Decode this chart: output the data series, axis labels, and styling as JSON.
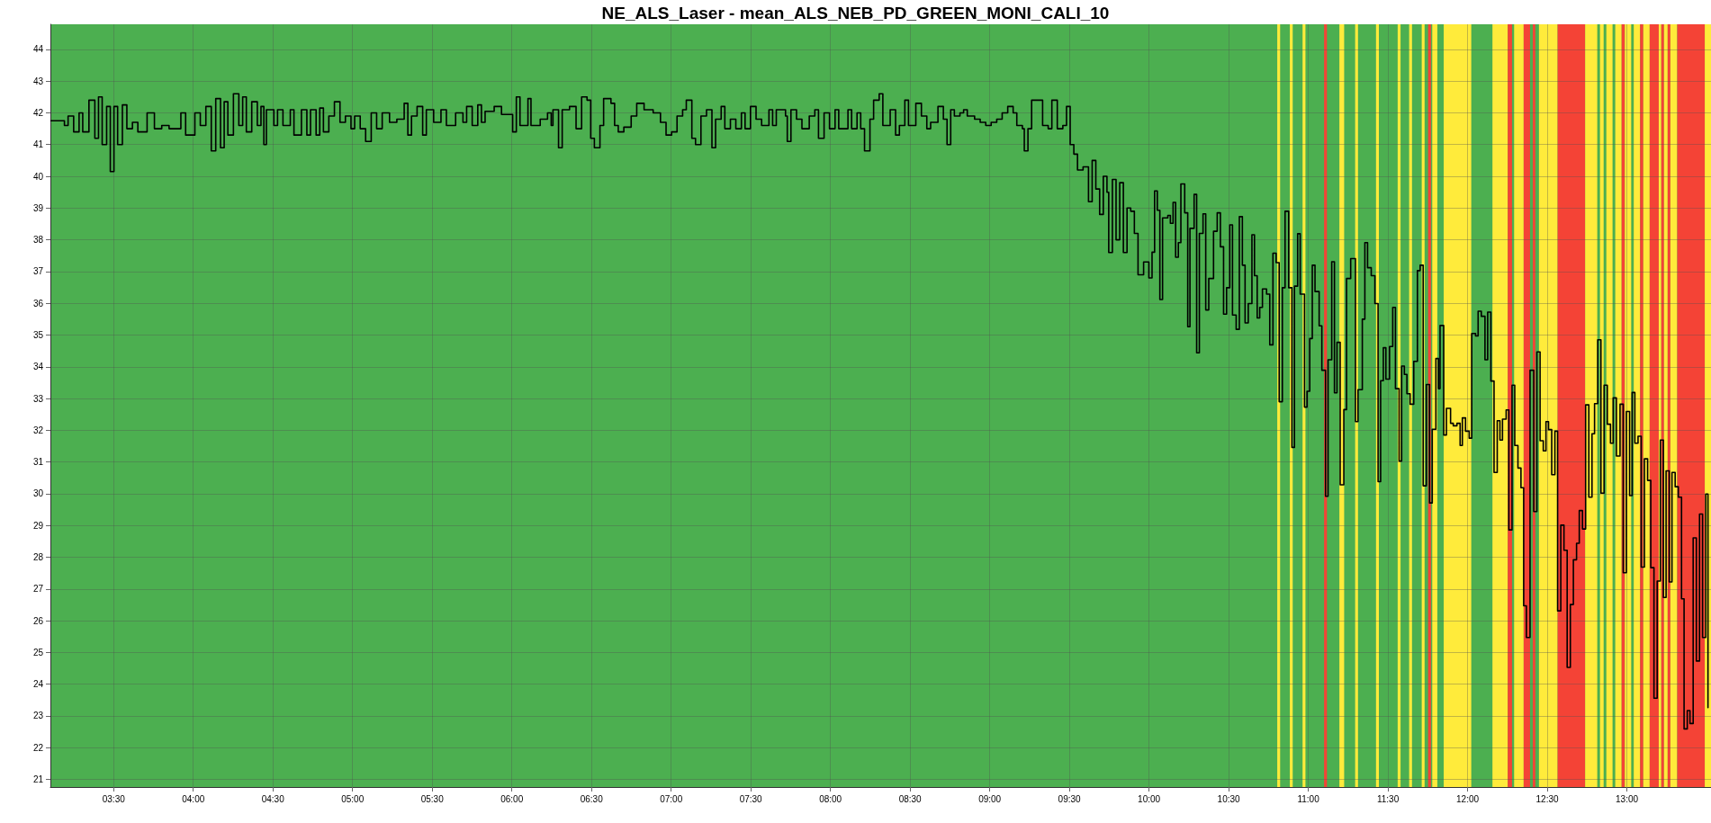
{
  "chart_data": {
    "type": "step",
    "title": "NE_ALS_Laser - mean_ALS_NEB_PD_GREEN_MONI_CALI_10",
    "xlim": [
      3.103,
      13.528
    ],
    "xticks": [
      {
        "value": 3.5,
        "label": "03:30"
      },
      {
        "value": 4,
        "label": "04:00"
      },
      {
        "value": 4.5,
        "label": "04:30"
      },
      {
        "value": 5,
        "label": "05:00"
      },
      {
        "value": 5.5,
        "label": "05:30"
      },
      {
        "value": 6,
        "label": "06:00"
      },
      {
        "value": 6.5,
        "label": "06:30"
      },
      {
        "value": 7,
        "label": "07:00"
      },
      {
        "value": 7.5,
        "label": "07:30"
      },
      {
        "value": 8,
        "label": "08:00"
      },
      {
        "value": 8.5,
        "label": "08:30"
      },
      {
        "value": 9,
        "label": "09:00"
      },
      {
        "value": 9.5,
        "label": "09:30"
      },
      {
        "value": 10,
        "label": "10:00"
      },
      {
        "value": 10.5,
        "label": "10:30"
      },
      {
        "value": 11,
        "label": "11:00"
      },
      {
        "value": 11.5,
        "label": "11:30"
      },
      {
        "value": 12,
        "label": "12:00"
      },
      {
        "value": 12.5,
        "label": "12:30"
      },
      {
        "value": 13,
        "label": "13:00"
      }
    ],
    "ylim": [
      20.76,
      44.79
    ],
    "yticks": [
      21,
      22,
      23,
      24,
      25,
      26,
      27,
      28,
      29,
      30,
      31,
      32,
      33,
      34,
      35,
      36,
      37,
      38,
      39,
      40,
      41,
      42,
      43,
      44
    ],
    "grid": true,
    "line_style": "solid",
    "bands": [
      {
        "axis": "x",
        "from": 3.103,
        "to": 13.528,
        "color": "#4caf50"
      },
      {
        "axis": "x",
        "from": 10.805,
        "to": 10.823,
        "color": "#ffeb3b"
      },
      {
        "axis": "x",
        "from": 10.884,
        "to": 10.902,
        "color": "#ffeb3b"
      },
      {
        "axis": "x",
        "from": 10.964,
        "to": 10.982,
        "color": "#ffeb3b"
      },
      {
        "axis": "x",
        "from": 11.099,
        "to": 11.117,
        "color": "#f44336"
      },
      {
        "axis": "x",
        "from": 11.195,
        "to": 11.225,
        "color": "#ffeb3b"
      },
      {
        "axis": "x",
        "from": 11.294,
        "to": 11.312,
        "color": "#ffeb3b"
      },
      {
        "axis": "x",
        "from": 11.425,
        "to": 11.443,
        "color": "#ffeb3b"
      },
      {
        "axis": "x",
        "from": 11.561,
        "to": 11.579,
        "color": "#ffeb3b"
      },
      {
        "axis": "x",
        "from": 11.633,
        "to": 11.651,
        "color": "#ffeb3b"
      },
      {
        "axis": "x",
        "from": 11.712,
        "to": 11.73,
        "color": "#ffeb3b"
      },
      {
        "axis": "x",
        "from": 11.752,
        "to": 11.77,
        "color": "#f44336"
      },
      {
        "axis": "x",
        "from": 11.778,
        "to": 11.81,
        "color": "#ffeb3b"
      },
      {
        "axis": "x",
        "from": 11.85,
        "to": 12.023,
        "color": "#ffeb3b"
      },
      {
        "axis": "x",
        "from": 12.156,
        "to": 12.252,
        "color": "#ffeb3b"
      },
      {
        "axis": "x",
        "from": 12.252,
        "to": 12.279,
        "color": "#f44336"
      },
      {
        "axis": "x",
        "from": 12.292,
        "to": 12.352,
        "color": "#ffeb3b"
      },
      {
        "axis": "x",
        "from": 12.352,
        "to": 12.392,
        "color": "#f44336"
      },
      {
        "axis": "x",
        "from": 12.409,
        "to": 12.425,
        "color": "#f44336"
      },
      {
        "axis": "x",
        "from": 12.448,
        "to": 12.565,
        "color": "#ffeb3b"
      },
      {
        "axis": "x",
        "from": 12.565,
        "to": 12.738,
        "color": "#f44336"
      },
      {
        "axis": "x",
        "from": 12.738,
        "to": 12.814,
        "color": "#ffeb3b"
      },
      {
        "axis": "x",
        "from": 12.831,
        "to": 12.854,
        "color": "#ffeb3b"
      },
      {
        "axis": "x",
        "from": 12.871,
        "to": 12.91,
        "color": "#ffeb3b"
      },
      {
        "axis": "x",
        "from": 12.927,
        "to": 12.967,
        "color": "#ffeb3b"
      },
      {
        "axis": "x",
        "from": 12.967,
        "to": 12.987,
        "color": "#f44336"
      },
      {
        "axis": "x",
        "from": 12.987,
        "to": 13.027,
        "color": "#ffeb3b"
      },
      {
        "axis": "x",
        "from": 13.043,
        "to": 13.083,
        "color": "#ffeb3b"
      },
      {
        "axis": "x",
        "from": 13.083,
        "to": 13.103,
        "color": "#f44336"
      },
      {
        "axis": "x",
        "from": 13.103,
        "to": 13.143,
        "color": "#ffeb3b"
      },
      {
        "axis": "x",
        "from": 13.143,
        "to": 13.2,
        "color": "#f44336"
      },
      {
        "axis": "x",
        "from": 13.2,
        "to": 13.216,
        "color": "#ffeb3b"
      },
      {
        "axis": "x",
        "from": 13.216,
        "to": 13.233,
        "color": "#f44336"
      },
      {
        "axis": "x",
        "from": 13.233,
        "to": 13.256,
        "color": "#ffeb3b"
      },
      {
        "axis": "x",
        "from": 13.256,
        "to": 13.273,
        "color": "#f44336"
      },
      {
        "axis": "x",
        "from": 13.273,
        "to": 13.316,
        "color": "#ffeb3b"
      },
      {
        "axis": "x",
        "from": 13.316,
        "to": 13.489,
        "color": "#f44336"
      },
      {
        "axis": "x",
        "from": 13.489,
        "to": 13.528,
        "color": "#ffeb3b"
      }
    ],
    "series": [
      {
        "color": "#000000",
        "x": [
          3.106,
          3.191,
          3.214,
          3.249,
          3.283,
          3.306,
          3.345,
          3.382,
          3.405,
          3.428,
          3.456,
          3.479,
          3.502,
          3.525,
          3.555,
          3.583,
          3.618,
          3.652,
          3.71,
          3.756,
          3.802,
          3.848,
          3.922,
          3.952,
          4.01,
          4.044,
          4.079,
          4.113,
          4.141,
          4.171,
          4.194,
          4.217,
          4.252,
          4.286,
          4.31,
          4.333,
          4.367,
          4.402,
          4.425,
          4.443,
          4.459,
          4.506,
          4.529,
          4.563,
          4.609,
          4.632,
          4.679,
          4.713,
          4.736,
          4.771,
          4.794,
          4.817,
          4.851,
          4.886,
          4.921,
          4.955,
          4.99,
          5.013,
          5.048,
          5.082,
          5.117,
          5.151,
          5.186,
          5.232,
          5.278,
          5.324,
          5.347,
          5.37,
          5.405,
          5.44,
          5.463,
          5.509,
          5.555,
          5.589,
          5.647,
          5.693,
          5.716,
          5.751,
          5.786,
          5.809,
          5.832,
          5.889,
          5.935,
          6.005,
          6.028,
          6.051,
          6.101,
          6.12,
          6.178,
          6.224,
          6.247,
          6.258,
          6.293,
          6.316,
          6.362,
          6.403,
          6.438,
          6.472,
          6.495,
          6.518,
          6.553,
          6.576,
          6.622,
          6.645,
          6.668,
          6.703,
          6.749,
          6.784,
          6.83,
          6.887,
          6.933,
          6.968,
          7.003,
          7.037,
          7.072,
          7.095,
          7.13,
          7.153,
          7.187,
          7.222,
          7.256,
          7.279,
          7.314,
          7.337,
          7.372,
          7.406,
          7.441,
          7.464,
          7.498,
          7.533,
          7.568,
          7.614,
          7.637,
          7.66,
          7.718,
          7.729,
          7.752,
          7.787,
          7.821,
          7.867,
          7.902,
          7.925,
          7.96,
          7.994,
          8.029,
          8.052,
          8.11,
          8.133,
          8.167,
          8.19,
          8.214,
          8.248,
          8.271,
          8.306,
          8.329,
          8.375,
          8.409,
          8.433,
          8.467,
          8.49,
          8.536,
          8.571,
          8.605,
          8.629,
          8.675,
          8.709,
          8.732,
          8.755,
          8.778,
          8.813,
          8.836,
          8.859,
          8.905,
          8.94,
          8.975,
          9.009,
          9.044,
          9.078,
          9.113,
          9.147,
          9.17,
          9.205,
          9.217,
          9.24,
          9.263,
          9.309,
          9.332,
          9.367,
          9.39,
          9.424,
          9.459,
          9.482,
          9.505,
          9.528,
          9.551,
          9.586,
          9.62,
          9.643,
          9.666,
          9.69,
          9.713,
          9.736,
          9.747,
          9.77,
          9.793,
          9.816,
          9.839,
          9.862,
          9.885,
          9.908,
          9.931,
          9.966,
          9.999,
          10.019,
          10.035,
          10.052,
          10.068,
          10.085,
          10.118,
          10.134,
          10.151,
          10.167,
          10.184,
          10.2,
          10.224,
          10.243,
          10.257,
          10.283,
          10.299,
          10.316,
          10.339,
          10.356,
          10.375,
          10.405,
          10.428,
          10.448,
          10.468,
          10.487,
          10.507,
          10.524,
          10.547,
          10.567,
          10.586,
          10.603,
          10.623,
          10.646,
          10.662,
          10.679,
          10.695,
          10.712,
          10.738,
          10.758,
          10.778,
          10.798,
          10.817,
          10.837,
          10.854,
          10.877,
          10.897,
          10.913,
          10.933,
          10.949,
          10.976,
          10.992,
          11.009,
          11.025,
          11.042,
          11.068,
          11.085,
          11.108,
          11.124,
          11.147,
          11.164,
          11.18,
          11.2,
          11.223,
          11.24,
          11.266,
          11.296,
          11.312,
          11.339,
          11.355,
          11.372,
          11.395,
          11.418,
          11.438,
          11.454,
          11.471,
          11.487,
          11.51,
          11.53,
          11.547,
          11.57,
          11.586,
          11.603,
          11.619,
          11.639,
          11.662,
          11.685,
          11.702,
          11.721,
          11.741,
          11.761,
          11.778,
          11.801,
          11.817,
          11.827,
          11.85,
          11.867,
          11.893,
          11.91,
          11.933,
          11.953,
          11.967,
          11.987,
          12.01,
          12.026,
          12.05,
          12.066,
          12.086,
          12.109,
          12.126,
          12.146,
          12.166,
          12.186,
          12.203,
          12.219,
          12.242,
          12.259,
          12.279,
          12.296,
          12.316,
          12.335,
          12.352,
          12.369,
          12.392,
          12.415,
          12.435,
          12.455,
          12.475,
          12.492,
          12.508,
          12.528,
          12.548,
          12.565,
          12.585,
          12.605,
          12.625,
          12.645,
          12.664,
          12.684,
          12.701,
          12.721,
          12.741,
          12.761,
          12.781,
          12.797,
          12.817,
          12.837,
          12.857,
          12.877,
          12.897,
          12.914,
          12.934,
          12.957,
          12.977,
          12.997,
          13.017,
          13.033,
          13.05,
          13.07,
          13.09,
          13.11,
          13.13,
          13.15,
          13.17,
          13.19,
          13.21,
          13.229,
          13.246,
          13.266,
          13.283,
          13.303,
          13.323,
          13.343,
          13.359,
          13.379,
          13.396,
          13.416,
          13.436,
          13.456,
          13.475,
          13.495,
          13.509
        ],
        "values": [
          41.75,
          41.6,
          41.9,
          41.4,
          42.0,
          41.4,
          42.4,
          41.2,
          42.5,
          41.0,
          42.2,
          40.15,
          42.2,
          41.0,
          42.25,
          41.5,
          41.7,
          41.4,
          42.0,
          41.5,
          41.6,
          41.5,
          42.0,
          41.3,
          42.0,
          41.6,
          42.2,
          40.8,
          42.45,
          40.9,
          42.35,
          41.3,
          42.6,
          41.6,
          42.5,
          41.4,
          42.35,
          41.6,
          42.2,
          41.0,
          42.1,
          41.6,
          42.1,
          41.6,
          42.1,
          41.3,
          42.1,
          41.3,
          42.1,
          41.3,
          42.15,
          41.4,
          41.9,
          42.35,
          41.7,
          41.9,
          41.5,
          41.9,
          41.5,
          41.1,
          42.0,
          41.5,
          42.0,
          41.7,
          41.8,
          42.3,
          41.3,
          41.9,
          42.2,
          41.3,
          42.1,
          41.7,
          42.1,
          41.6,
          42.0,
          41.7,
          42.2,
          41.6,
          42.25,
          41.7,
          42.05,
          42.2,
          41.95,
          41.4,
          42.5,
          41.6,
          42.45,
          41.6,
          41.8,
          42.0,
          41.6,
          42.1,
          40.9,
          42.1,
          42.2,
          41.5,
          42.5,
          42.4,
          41.2,
          40.9,
          41.6,
          42.45,
          42.3,
          41.6,
          41.4,
          41.55,
          41.9,
          42.3,
          42.1,
          42.0,
          41.7,
          41.3,
          41.4,
          41.9,
          42.1,
          42.4,
          41.2,
          41.0,
          41.9,
          42.1,
          40.9,
          41.8,
          42.2,
          41.5,
          41.8,
          41.5,
          42.0,
          41.5,
          42.2,
          41.8,
          41.6,
          42.1,
          41.6,
          42.1,
          41.9,
          41.1,
          42.1,
          41.8,
          41.5,
          41.9,
          42.1,
          41.2,
          42.0,
          41.5,
          42.1,
          41.5,
          42.1,
          41.5,
          42.0,
          41.5,
          40.8,
          41.8,
          42.4,
          42.6,
          41.6,
          42.1,
          41.3,
          41.6,
          42.4,
          41.6,
          42.3,
          41.9,
          41.5,
          41.7,
          42.2,
          41.8,
          41.0,
          42.1,
          41.9,
          42.0,
          42.1,
          41.9,
          41.8,
          41.7,
          41.6,
          41.7,
          41.8,
          42.0,
          42.2,
          42.0,
          41.6,
          41.5,
          40.8,
          41.5,
          42.4,
          42.4,
          41.6,
          41.5,
          42.4,
          41.5,
          41.6,
          42.2,
          41.0,
          40.7,
          40.2,
          40.3,
          39.2,
          40.5,
          39.6,
          38.8,
          40.0,
          39.5,
          37.6,
          39.9,
          38.0,
          39.8,
          37.6,
          39.0,
          38.9,
          38.2,
          36.9,
          37.3,
          36.8,
          37.61,
          39.54,
          38.93,
          36.12,
          38.69,
          38.77,
          38.52,
          39.18,
          37.45,
          37.91,
          39.76,
          38.85,
          35.26,
          38.36,
          39.43,
          34.44,
          38.2,
          38.82,
          35.79,
          36.78,
          38.27,
          38.85,
          37.78,
          35.66,
          36.49,
          38.47,
          35.63,
          35.18,
          38.73,
          37.2,
          35.38,
          35.99,
          38.16,
          36.87,
          35.54,
          35.87,
          36.45,
          36.29,
          34.69,
          37.58,
          37.28,
          32.9,
          36.49,
          38.9,
          36.49,
          31.46,
          36.54,
          38.19,
          36.29,
          32.73,
          33.23,
          34.89,
          37.2,
          36.37,
          35.29,
          33.89,
          29.92,
          34.22,
          37.31,
          33.18,
          34.77,
          30.28,
          32.65,
          36.78,
          37.41,
          32.27,
          33.28,
          35.5,
          37.91,
          37.12,
          36.87,
          35.99,
          30.38,
          33.56,
          34.6,
          33.61,
          34.64,
          35.87,
          33.31,
          31.03,
          34.02,
          33.76,
          33.15,
          32.82,
          34.17,
          37.03,
          37.2,
          30.25,
          33.44,
          29.71,
          32.03,
          34.26,
          33.31,
          35.3,
          31.85,
          32.69,
          32.22,
          32.14,
          32.22,
          31.52,
          32.39,
          31.97,
          31.75,
          35.05,
          34.97,
          35.75,
          35.59,
          34.22,
          35.72,
          33.55,
          30.67,
          32.3,
          31.69,
          32.35,
          32.64,
          28.86,
          33.42,
          31.52,
          30.81,
          30.19,
          26.47,
          25.47,
          33.89,
          29.44,
          34.47,
          31.67,
          31.35,
          32.27,
          32.02,
          30.6,
          31.97,
          26.31,
          29.01,
          28.22,
          24.53,
          26.51,
          27.92,
          28.44,
          29.47,
          28.89,
          32.8,
          29.89,
          31.89,
          32.84,
          34.85,
          30.02,
          33.42,
          32.19,
          31.59,
          33.02,
          31.19,
          32.82,
          27.51,
          32.59,
          29.94,
          33.19,
          31.59,
          31.81,
          27.69,
          31.1,
          30.42,
          27.67,
          23.56,
          27.25,
          31.69,
          26.73,
          30.72,
          27.22,
          30.67,
          30.22,
          29.89,
          26.69,
          22.59,
          23.17,
          22.76,
          28.61,
          24.73,
          29.36,
          25.47,
          29.99,
          23.26
        ]
      }
    ]
  }
}
